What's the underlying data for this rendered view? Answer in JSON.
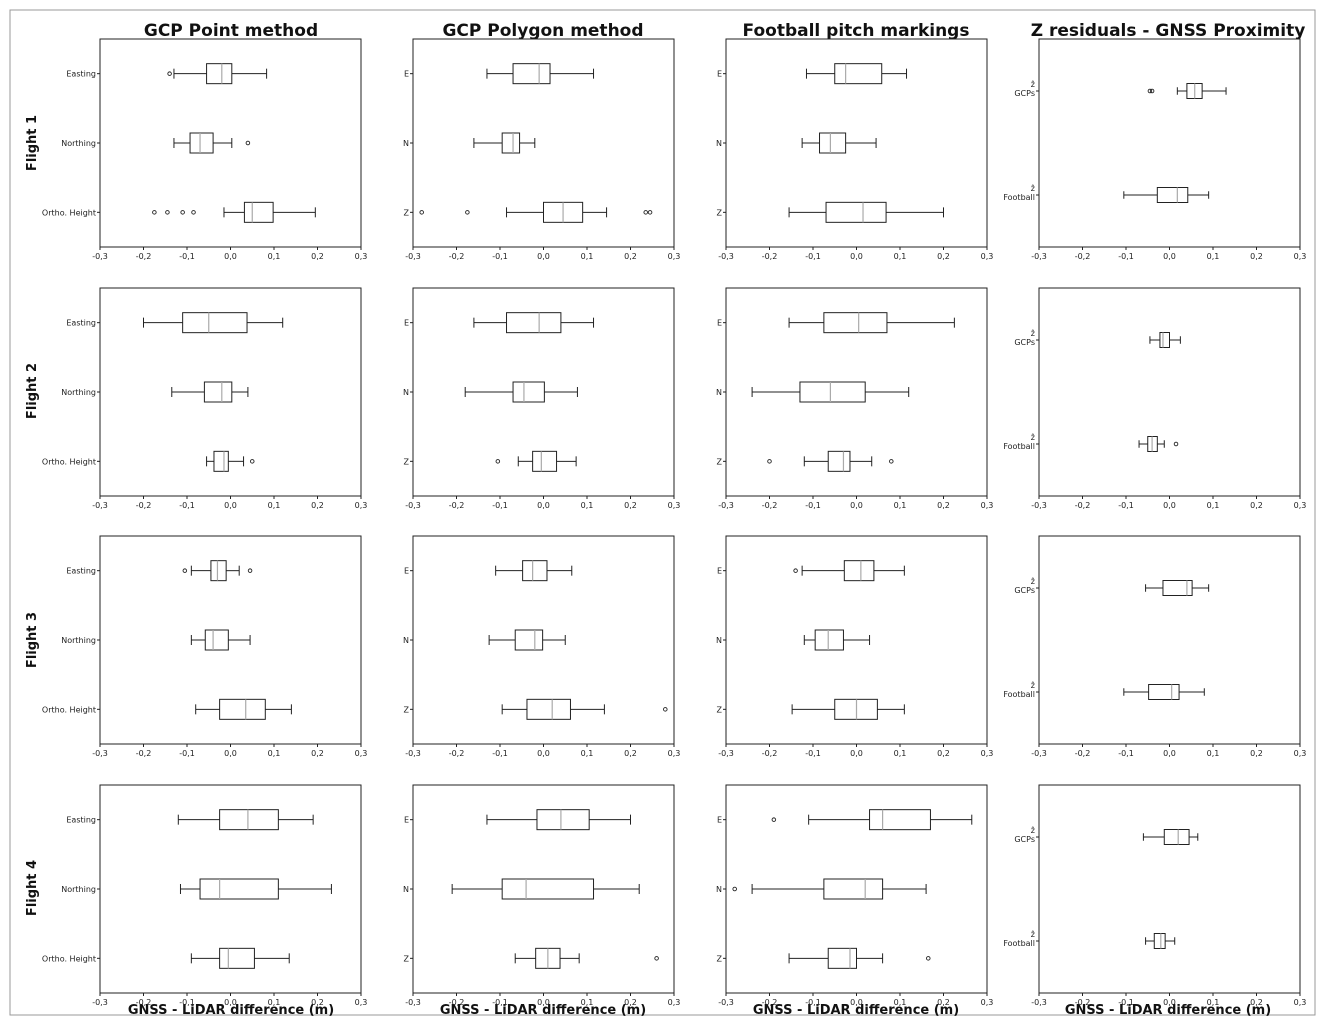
{
  "figure": {
    "column_titles": [
      "GCP Point method",
      "GCP Polygon method",
      "Football pitch markings",
      "Z residuals - GNSS Proximity"
    ],
    "row_titles": [
      "Flight 1",
      "Flight 2",
      "Flight 3",
      "Flight 4"
    ],
    "xlabel": "GNSS - LiDAR difference (m)",
    "xticks": [
      "-0,3",
      "-0,2",
      "-0,1",
      "0,0",
      "0,1",
      "0,2",
      "0,3"
    ]
  },
  "chart_data": [
    {
      "type": "boxplot",
      "flight": "Flight 1",
      "method": "GCP Point method",
      "xlim": [
        -0.3,
        0.3
      ],
      "boxes": [
        {
          "label": "Easting",
          "whislo": -0.13,
          "q1": -0.055,
          "med": -0.02,
          "q3": 0.003,
          "whishi": 0.083,
          "fliers": [
            -0.14
          ]
        },
        {
          "label": "Northing",
          "whislo": -0.13,
          "q1": -0.093,
          "med": -0.07,
          "q3": -0.04,
          "whishi": 0.003,
          "fliers": [
            0.04
          ]
        },
        {
          "label": "Ortho. Height",
          "whislo": -0.015,
          "q1": 0.032,
          "med": 0.05,
          "q3": 0.098,
          "whishi": 0.195,
          "fliers": [
            -0.175,
            -0.145,
            -0.11,
            -0.085
          ]
        }
      ]
    },
    {
      "type": "boxplot",
      "flight": "Flight 1",
      "method": "GCP Polygon method",
      "xlim": [
        -0.3,
        0.3
      ],
      "boxes": [
        {
          "label": "E",
          "whislo": -0.13,
          "q1": -0.07,
          "med": -0.01,
          "q3": 0.015,
          "whishi": 0.115,
          "fliers": []
        },
        {
          "label": "N",
          "whislo": -0.16,
          "q1": -0.095,
          "med": -0.07,
          "q3": -0.055,
          "whishi": -0.02,
          "fliers": []
        },
        {
          "label": "Z",
          "whislo": -0.085,
          "q1": 0.0,
          "med": 0.045,
          "q3": 0.09,
          "whishi": 0.145,
          "fliers": [
            -0.28,
            -0.175,
            0.235,
            0.245
          ]
        }
      ]
    },
    {
      "type": "boxplot",
      "flight": "Flight 1",
      "method": "Football pitch markings",
      "xlim": [
        -0.3,
        0.3
      ],
      "boxes": [
        {
          "label": "E",
          "whislo": -0.115,
          "q1": -0.05,
          "med": -0.025,
          "q3": 0.058,
          "whishi": 0.115,
          "fliers": []
        },
        {
          "label": "N",
          "whislo": -0.125,
          "q1": -0.085,
          "med": -0.06,
          "q3": -0.025,
          "whishi": 0.045,
          "fliers": []
        },
        {
          "label": "Z",
          "whislo": -0.155,
          "q1": -0.07,
          "med": 0.015,
          "q3": 0.068,
          "whishi": 0.2,
          "fliers": []
        }
      ]
    },
    {
      "type": "boxplot",
      "flight": "Flight 1",
      "method": "Z residuals - GNSS Proximity",
      "xlim": [
        -0.3,
        0.3
      ],
      "boxes": [
        {
          "label": "ẑ GCPs",
          "whislo": 0.018,
          "q1": 0.04,
          "med": 0.058,
          "q3": 0.075,
          "whishi": 0.13,
          "fliers": [
            -0.045,
            -0.04
          ]
        },
        {
          "label": "ẑ Football",
          "whislo": -0.105,
          "q1": -0.028,
          "med": 0.018,
          "q3": 0.042,
          "whishi": 0.09,
          "fliers": []
        }
      ]
    },
    {
      "type": "boxplot",
      "flight": "Flight 2",
      "method": "GCP Point method",
      "xlim": [
        -0.3,
        0.3
      ],
      "boxes": [
        {
          "label": "Easting",
          "whislo": -0.2,
          "q1": -0.11,
          "med": -0.05,
          "q3": 0.038,
          "whishi": 0.12,
          "fliers": []
        },
        {
          "label": "Northing",
          "whislo": -0.135,
          "q1": -0.06,
          "med": -0.02,
          "q3": 0.003,
          "whishi": 0.04,
          "fliers": []
        },
        {
          "label": "Ortho. Height",
          "whislo": -0.055,
          "q1": -0.038,
          "med": -0.015,
          "q3": -0.005,
          "whishi": 0.03,
          "fliers": [
            0.05
          ]
        }
      ]
    },
    {
      "type": "boxplot",
      "flight": "Flight 2",
      "method": "GCP Polygon method",
      "xlim": [
        -0.3,
        0.3
      ],
      "boxes": [
        {
          "label": "E",
          "whislo": -0.16,
          "q1": -0.085,
          "med": -0.01,
          "q3": 0.04,
          "whishi": 0.115,
          "fliers": []
        },
        {
          "label": "N",
          "whislo": -0.18,
          "q1": -0.07,
          "med": -0.045,
          "q3": 0.002,
          "whishi": 0.078,
          "fliers": []
        },
        {
          "label": "Z",
          "whislo": -0.058,
          "q1": -0.025,
          "med": -0.005,
          "q3": 0.03,
          "whishi": 0.075,
          "fliers": [
            -0.105
          ]
        }
      ]
    },
    {
      "type": "boxplot",
      "flight": "Flight 2",
      "method": "Football pitch markings",
      "xlim": [
        -0.3,
        0.3
      ],
      "boxes": [
        {
          "label": "E",
          "whislo": -0.155,
          "q1": -0.075,
          "med": 0.005,
          "q3": 0.07,
          "whishi": 0.225,
          "fliers": []
        },
        {
          "label": "N",
          "whislo": -0.24,
          "q1": -0.13,
          "med": -0.06,
          "q3": 0.02,
          "whishi": 0.12,
          "fliers": []
        },
        {
          "label": "Z",
          "whislo": -0.12,
          "q1": -0.065,
          "med": -0.03,
          "q3": -0.015,
          "whishi": 0.035,
          "fliers": [
            -0.2,
            0.08
          ]
        }
      ]
    },
    {
      "type": "boxplot",
      "flight": "Flight 2",
      "method": "Z residuals - GNSS Proximity",
      "xlim": [
        -0.3,
        0.3
      ],
      "boxes": [
        {
          "label": "ẑ GCPs",
          "whislo": -0.045,
          "q1": -0.022,
          "med": -0.015,
          "q3": 0.0,
          "whishi": 0.025,
          "fliers": []
        },
        {
          "label": "ẑ Football",
          "whislo": -0.07,
          "q1": -0.05,
          "med": -0.04,
          "q3": -0.028,
          "whishi": -0.012,
          "fliers": [
            0.015
          ]
        }
      ]
    },
    {
      "type": "boxplot",
      "flight": "Flight 3",
      "method": "GCP Point method",
      "xlim": [
        -0.3,
        0.3
      ],
      "boxes": [
        {
          "label": "Easting",
          "whislo": -0.09,
          "q1": -0.045,
          "med": -0.03,
          "q3": -0.01,
          "whishi": 0.02,
          "fliers": [
            -0.105,
            0.045
          ]
        },
        {
          "label": "Northing",
          "whislo": -0.09,
          "q1": -0.058,
          "med": -0.04,
          "q3": -0.005,
          "whishi": 0.045,
          "fliers": []
        },
        {
          "label": "Ortho. Height",
          "whislo": -0.08,
          "q1": -0.025,
          "med": 0.035,
          "q3": 0.08,
          "whishi": 0.14,
          "fliers": []
        }
      ]
    },
    {
      "type": "boxplot",
      "flight": "Flight 3",
      "method": "GCP Polygon method",
      "xlim": [
        -0.3,
        0.3
      ],
      "boxes": [
        {
          "label": "E",
          "whislo": -0.11,
          "q1": -0.048,
          "med": -0.025,
          "q3": 0.008,
          "whishi": 0.065,
          "fliers": []
        },
        {
          "label": "N",
          "whislo": -0.125,
          "q1": -0.065,
          "med": -0.02,
          "q3": -0.002,
          "whishi": 0.05,
          "fliers": []
        },
        {
          "label": "Z",
          "whislo": -0.095,
          "q1": -0.038,
          "med": 0.02,
          "q3": 0.062,
          "whishi": 0.14,
          "fliers": [
            0.28
          ]
        }
      ]
    },
    {
      "type": "boxplot",
      "flight": "Flight 3",
      "method": "Football pitch markings",
      "xlim": [
        -0.3,
        0.3
      ],
      "boxes": [
        {
          "label": "E",
          "whislo": -0.125,
          "q1": -0.028,
          "med": 0.01,
          "q3": 0.04,
          "whishi": 0.11,
          "fliers": [
            -0.14
          ]
        },
        {
          "label": "N",
          "whislo": -0.12,
          "q1": -0.095,
          "med": -0.065,
          "q3": -0.03,
          "whishi": 0.03,
          "fliers": []
        },
        {
          "label": "Z",
          "whislo": -0.148,
          "q1": -0.05,
          "med": 0.0,
          "q3": 0.048,
          "whishi": 0.11,
          "fliers": []
        }
      ]
    },
    {
      "type": "boxplot",
      "flight": "Flight 3",
      "method": "Z residuals - GNSS Proximity",
      "xlim": [
        -0.3,
        0.3
      ],
      "boxes": [
        {
          "label": "ẑ GCPs",
          "whislo": -0.055,
          "q1": -0.015,
          "med": 0.04,
          "q3": 0.052,
          "whishi": 0.09,
          "fliers": []
        },
        {
          "label": "ẑ Football",
          "whislo": -0.105,
          "q1": -0.048,
          "med": 0.005,
          "q3": 0.022,
          "whishi": 0.08,
          "fliers": []
        }
      ]
    },
    {
      "type": "boxplot",
      "flight": "Flight 4",
      "method": "GCP Point method",
      "xlim": [
        -0.3,
        0.3
      ],
      "boxes": [
        {
          "label": "Easting",
          "whislo": -0.12,
          "q1": -0.025,
          "med": 0.04,
          "q3": 0.11,
          "whishi": 0.19,
          "fliers": []
        },
        {
          "label": "Northing",
          "whislo": -0.115,
          "q1": -0.07,
          "med": -0.025,
          "q3": 0.11,
          "whishi": 0.232,
          "fliers": []
        },
        {
          "label": "Ortho. Height",
          "whislo": -0.09,
          "q1": -0.025,
          "med": -0.005,
          "q3": 0.055,
          "whishi": 0.135,
          "fliers": []
        }
      ]
    },
    {
      "type": "boxplot",
      "flight": "Flight 4",
      "method": "GCP Polygon method",
      "xlim": [
        -0.3,
        0.3
      ],
      "boxes": [
        {
          "label": "E",
          "whislo": -0.13,
          "q1": -0.015,
          "med": 0.04,
          "q3": 0.105,
          "whishi": 0.2,
          "fliers": []
        },
        {
          "label": "N",
          "whislo": -0.21,
          "q1": -0.095,
          "med": -0.04,
          "q3": 0.115,
          "whishi": 0.22,
          "fliers": []
        },
        {
          "label": "Z",
          "whislo": -0.065,
          "q1": -0.018,
          "med": 0.01,
          "q3": 0.038,
          "whishi": 0.082,
          "fliers": [
            0.26
          ]
        }
      ]
    },
    {
      "type": "boxplot",
      "flight": "Flight 4",
      "method": "Football pitch markings",
      "xlim": [
        -0.3,
        0.3
      ],
      "boxes": [
        {
          "label": "E",
          "whislo": -0.11,
          "q1": 0.03,
          "med": 0.06,
          "q3": 0.17,
          "whishi": 0.265,
          "fliers": [
            -0.19
          ]
        },
        {
          "label": "N",
          "whislo": -0.24,
          "q1": -0.075,
          "med": 0.02,
          "q3": 0.06,
          "whishi": 0.16,
          "fliers": [
            -0.28
          ]
        },
        {
          "label": "Z",
          "whislo": -0.155,
          "q1": -0.065,
          "med": -0.015,
          "q3": 0.0,
          "whishi": 0.06,
          "fliers": [
            0.165
          ]
        }
      ]
    },
    {
      "type": "boxplot",
      "flight": "Flight 4",
      "method": "Z residuals - GNSS Proximity",
      "xlim": [
        -0.3,
        0.3
      ],
      "boxes": [
        {
          "label": "ẑ GCPs",
          "whislo": -0.06,
          "q1": -0.012,
          "med": 0.02,
          "q3": 0.045,
          "whishi": 0.065,
          "fliers": []
        },
        {
          "label": "ẑ Football",
          "whislo": -0.055,
          "q1": -0.035,
          "med": -0.02,
          "q3": -0.01,
          "whishi": 0.012,
          "fliers": []
        }
      ]
    }
  ]
}
